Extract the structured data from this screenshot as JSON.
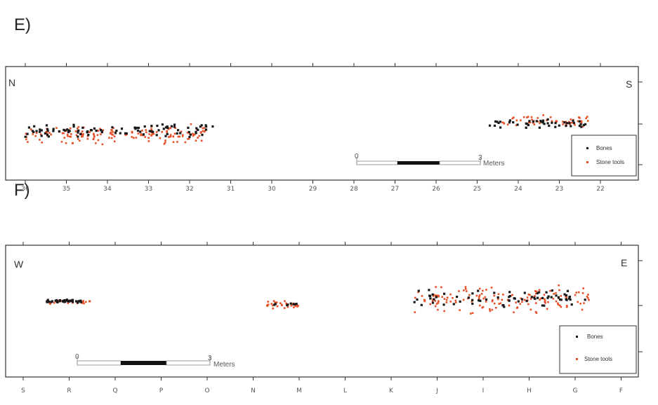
{
  "panels": [
    {
      "id": "E",
      "label": "E)",
      "left_direction": "N",
      "right_direction": "S",
      "scale_start": "0",
      "scale_end": "3",
      "scale_unit": "Meters",
      "legend": [
        "Bones",
        "Stone tools"
      ],
      "x_ticks": [
        "36",
        "35",
        "34",
        "33",
        "32",
        "31",
        "30",
        "29",
        "28",
        "27",
        "26",
        "25",
        "24",
        "23",
        "22"
      ]
    },
    {
      "id": "F",
      "label": "F)",
      "left_direction": "W",
      "right_direction": "E",
      "scale_start": "0",
      "scale_end": "3",
      "scale_unit": "Meters",
      "legend": [
        "Bones",
        "Stone tools"
      ],
      "x_ticks": [
        "S",
        "R",
        "Q",
        "P",
        "O",
        "N",
        "M",
        "L",
        "K",
        "J",
        "I",
        "H",
        "G",
        "F"
      ]
    }
  ],
  "colors": {
    "bones": "#1a1a1a",
    "stone_tools": "#e8502a",
    "frame": "#333333"
  },
  "chart_data": [
    {
      "type": "scatter",
      "title": "E)",
      "xlabel": "",
      "ylabel": "",
      "x_categories": [
        "36",
        "35",
        "34",
        "33",
        "32",
        "31",
        "30",
        "29",
        "28",
        "27",
        "26",
        "25",
        "24",
        "23",
        "22"
      ],
      "series": [
        {
          "name": "Bones",
          "clusters": [
            {
              "x_range": [
                36.0,
                31.3
              ],
              "y_range": [
                -0.2,
                0.3
              ],
              "count": 95
            },
            {
              "x_range": [
                24.7,
                22.3
              ],
              "y_range": [
                0.1,
                0.5
              ],
              "count": 45
            }
          ]
        },
        {
          "name": "Stone tools",
          "clusters": [
            {
              "x_range": [
                36.0,
                31.6
              ],
              "y_range": [
                -0.5,
                0.3
              ],
              "count": 160
            },
            {
              "x_range": [
                24.4,
                22.3
              ],
              "y_range": [
                0.15,
                0.6
              ],
              "count": 55
            }
          ]
        }
      ],
      "grid": false,
      "legend_position": "bottom-right"
    },
    {
      "type": "scatter",
      "title": "F)",
      "xlabel": "",
      "ylabel": "",
      "x_categories": [
        "S",
        "R",
        "Q",
        "P",
        "O",
        "N",
        "M",
        "L",
        "K",
        "J",
        "I",
        "H",
        "G",
        "F"
      ],
      "series": [
        {
          "name": "Bones",
          "clusters": [
            {
              "x_range": [
                0.5,
                1.3
              ],
              "y_range": [
                0.0,
                0.1
              ],
              "count": 40
            },
            {
              "x_range": [
                5.4,
                6.0
              ],
              "y_range": [
                -0.1,
                0.0
              ],
              "count": 8
            },
            {
              "x_range": [
                8.5,
                12.3
              ],
              "y_range": [
                -0.15,
                0.45
              ],
              "count": 70
            }
          ]
        },
        {
          "name": "Stone tools",
          "clusters": [
            {
              "x_range": [
                0.5,
                1.5
              ],
              "y_range": [
                -0.05,
                0.1
              ],
              "count": 35
            },
            {
              "x_range": [
                5.3,
                6.0
              ],
              "y_range": [
                -0.2,
                0.1
              ],
              "count": 30
            },
            {
              "x_range": [
                8.5,
                12.3
              ],
              "y_range": [
                -0.4,
                0.6
              ],
              "count": 150
            }
          ]
        }
      ],
      "grid": false,
      "legend_position": "bottom-right"
    }
  ]
}
